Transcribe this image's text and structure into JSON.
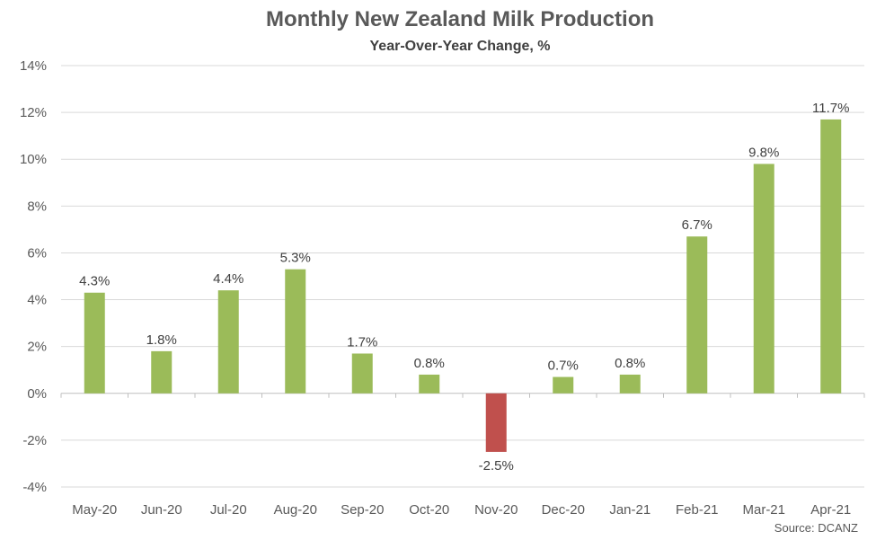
{
  "chart_data": {
    "type": "bar",
    "title": "Monthly New Zealand Milk Production",
    "subtitle": "Year-Over-Year Change, %",
    "source": "Source: DCANZ",
    "categories": [
      "May-20",
      "Jun-20",
      "Jul-20",
      "Aug-20",
      "Sep-20",
      "Oct-20",
      "Nov-20",
      "Dec-20",
      "Jan-21",
      "Feb-21",
      "Mar-21",
      "Apr-21"
    ],
    "values": [
      4.3,
      1.8,
      4.4,
      5.3,
      1.7,
      0.8,
      -2.5,
      0.7,
      0.8,
      6.7,
      9.8,
      11.7
    ],
    "data_labels": [
      "4.3%",
      "1.8%",
      "4.4%",
      "5.3%",
      "1.7%",
      "0.8%",
      "-2.5%",
      "0.7%",
      "0.8%",
      "6.7%",
      "9.8%",
      "11.7%"
    ],
    "y_ticks": [
      14,
      12,
      10,
      8,
      6,
      4,
      2,
      0,
      -2,
      -4
    ],
    "y_tick_labels": [
      "14%",
      "12%",
      "10%",
      "8%",
      "6%",
      "4%",
      "2%",
      "0%",
      "-2%",
      "-4%"
    ],
    "ylim": [
      -4,
      14
    ],
    "grid": true,
    "colors": {
      "positive": "#9BBB59",
      "negative": "#C0504D",
      "grid": "#D9D9D9",
      "axis": "#BFBFBF"
    }
  }
}
